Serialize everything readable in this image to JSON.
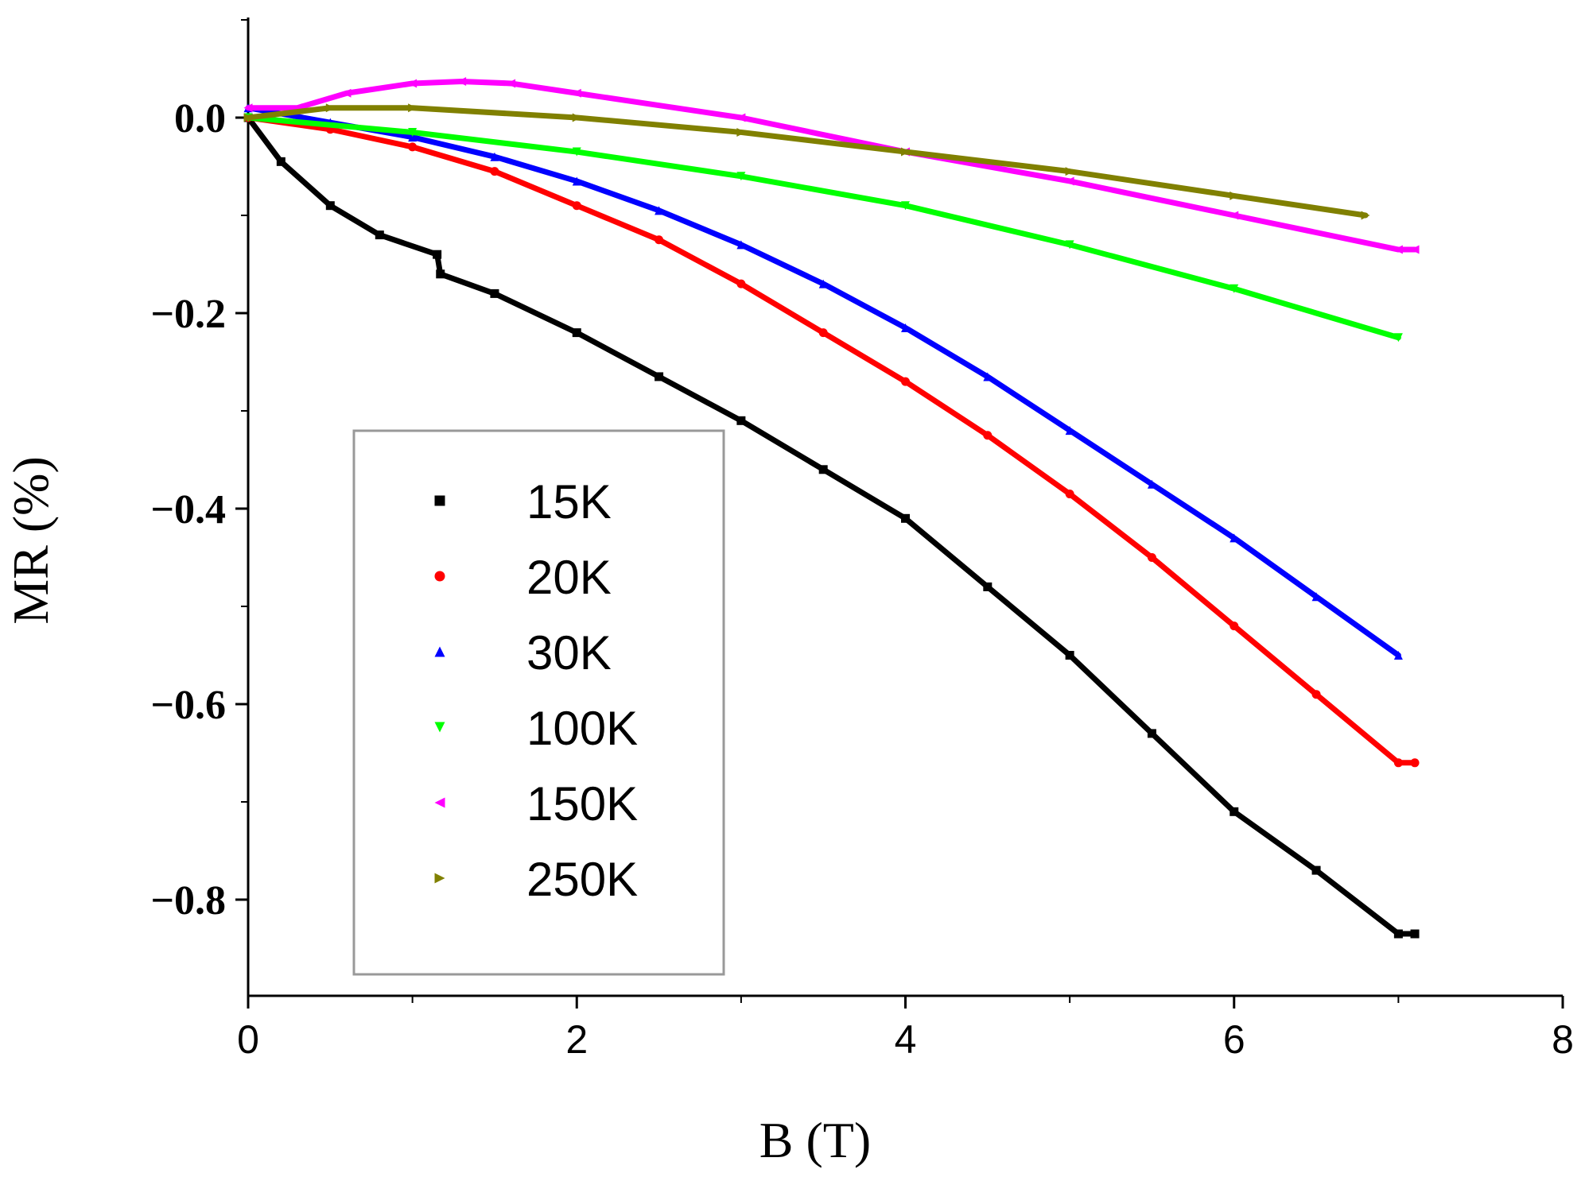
{
  "chart_data": {
    "type": "scatter",
    "title": "",
    "xlabel": "B (T)",
    "ylabel": "MR (%)",
    "xlim": [
      0,
      8
    ],
    "ylim": [
      -0.9,
      0.1
    ],
    "xticks": [
      0,
      2,
      4,
      6,
      8
    ],
    "xtick_labels": [
      "0",
      "2",
      "4",
      "6",
      "8"
    ],
    "yticks": [
      0.0,
      -0.2,
      -0.4,
      -0.6,
      -0.8
    ],
    "ytick_labels": [
      "0.0",
      "−0.2",
      "−0.4",
      "−0.6",
      "−0.8"
    ],
    "grid": false,
    "legend_position": "lower-left",
    "series": [
      {
        "name": "15K",
        "color": "#000000",
        "marker": "square",
        "x": [
          0,
          0.2,
          0.5,
          0.8,
          1.15,
          1.17,
          1.5,
          2.0,
          2.5,
          3.0,
          3.5,
          4.0,
          4.5,
          5.0,
          5.5,
          6.0,
          6.5,
          7.0,
          7.1
        ],
        "y": [
          0,
          -0.045,
          -0.09,
          -0.12,
          -0.14,
          -0.16,
          -0.18,
          -0.22,
          -0.265,
          -0.31,
          -0.36,
          -0.41,
          -0.48,
          -0.55,
          -0.63,
          -0.71,
          -0.77,
          -0.835,
          -0.835
        ]
      },
      {
        "name": "20K",
        "color": "#ff0000",
        "marker": "circle",
        "x": [
          0,
          0.5,
          1.0,
          1.5,
          2.0,
          2.5,
          3.0,
          3.5,
          4.0,
          4.5,
          5.0,
          5.5,
          6.0,
          6.5,
          7.0,
          7.1
        ],
        "y": [
          0,
          -0.012,
          -0.03,
          -0.055,
          -0.09,
          -0.125,
          -0.17,
          -0.22,
          -0.27,
          -0.325,
          -0.385,
          -0.45,
          -0.52,
          -0.59,
          -0.66,
          -0.66
        ]
      },
      {
        "name": "30K",
        "color": "#0000ff",
        "marker": "triangle-up",
        "x": [
          0,
          0.5,
          1.0,
          1.5,
          2.0,
          2.5,
          3.0,
          3.5,
          4.0,
          4.5,
          5.0,
          5.5,
          6.0,
          6.5,
          7.0
        ],
        "y": [
          0.01,
          -0.005,
          -0.02,
          -0.04,
          -0.065,
          -0.095,
          -0.13,
          -0.17,
          -0.215,
          -0.265,
          -0.32,
          -0.375,
          -0.43,
          -0.49,
          -0.55
        ]
      },
      {
        "name": "100K",
        "color": "#00ff00",
        "marker": "triangle-down",
        "x": [
          0,
          1.0,
          2.0,
          3.0,
          4.0,
          5.0,
          6.0,
          7.0
        ],
        "y": [
          0,
          -0.015,
          -0.035,
          -0.06,
          -0.09,
          -0.13,
          -0.175,
          -0.225
        ]
      },
      {
        "name": "150K",
        "color": "#ff00ff",
        "marker": "triangle-left",
        "x": [
          0,
          0.3,
          0.6,
          1.0,
          1.3,
          1.6,
          2.0,
          3.0,
          4.0,
          5.0,
          6.0,
          7.0,
          7.1
        ],
        "y": [
          0.01,
          0.01,
          0.025,
          0.035,
          0.037,
          0.035,
          0.025,
          0.0,
          -0.035,
          -0.065,
          -0.1,
          -0.135,
          -0.135
        ]
      },
      {
        "name": "250K",
        "color": "#808000",
        "marker": "triangle-right",
        "x": [
          0,
          0.5,
          1.0,
          2.0,
          3.0,
          4.0,
          5.0,
          6.0,
          6.8
        ],
        "y": [
          0,
          0.01,
          0.01,
          0.0,
          -0.015,
          -0.035,
          -0.055,
          -0.08,
          -0.1
        ]
      }
    ]
  }
}
